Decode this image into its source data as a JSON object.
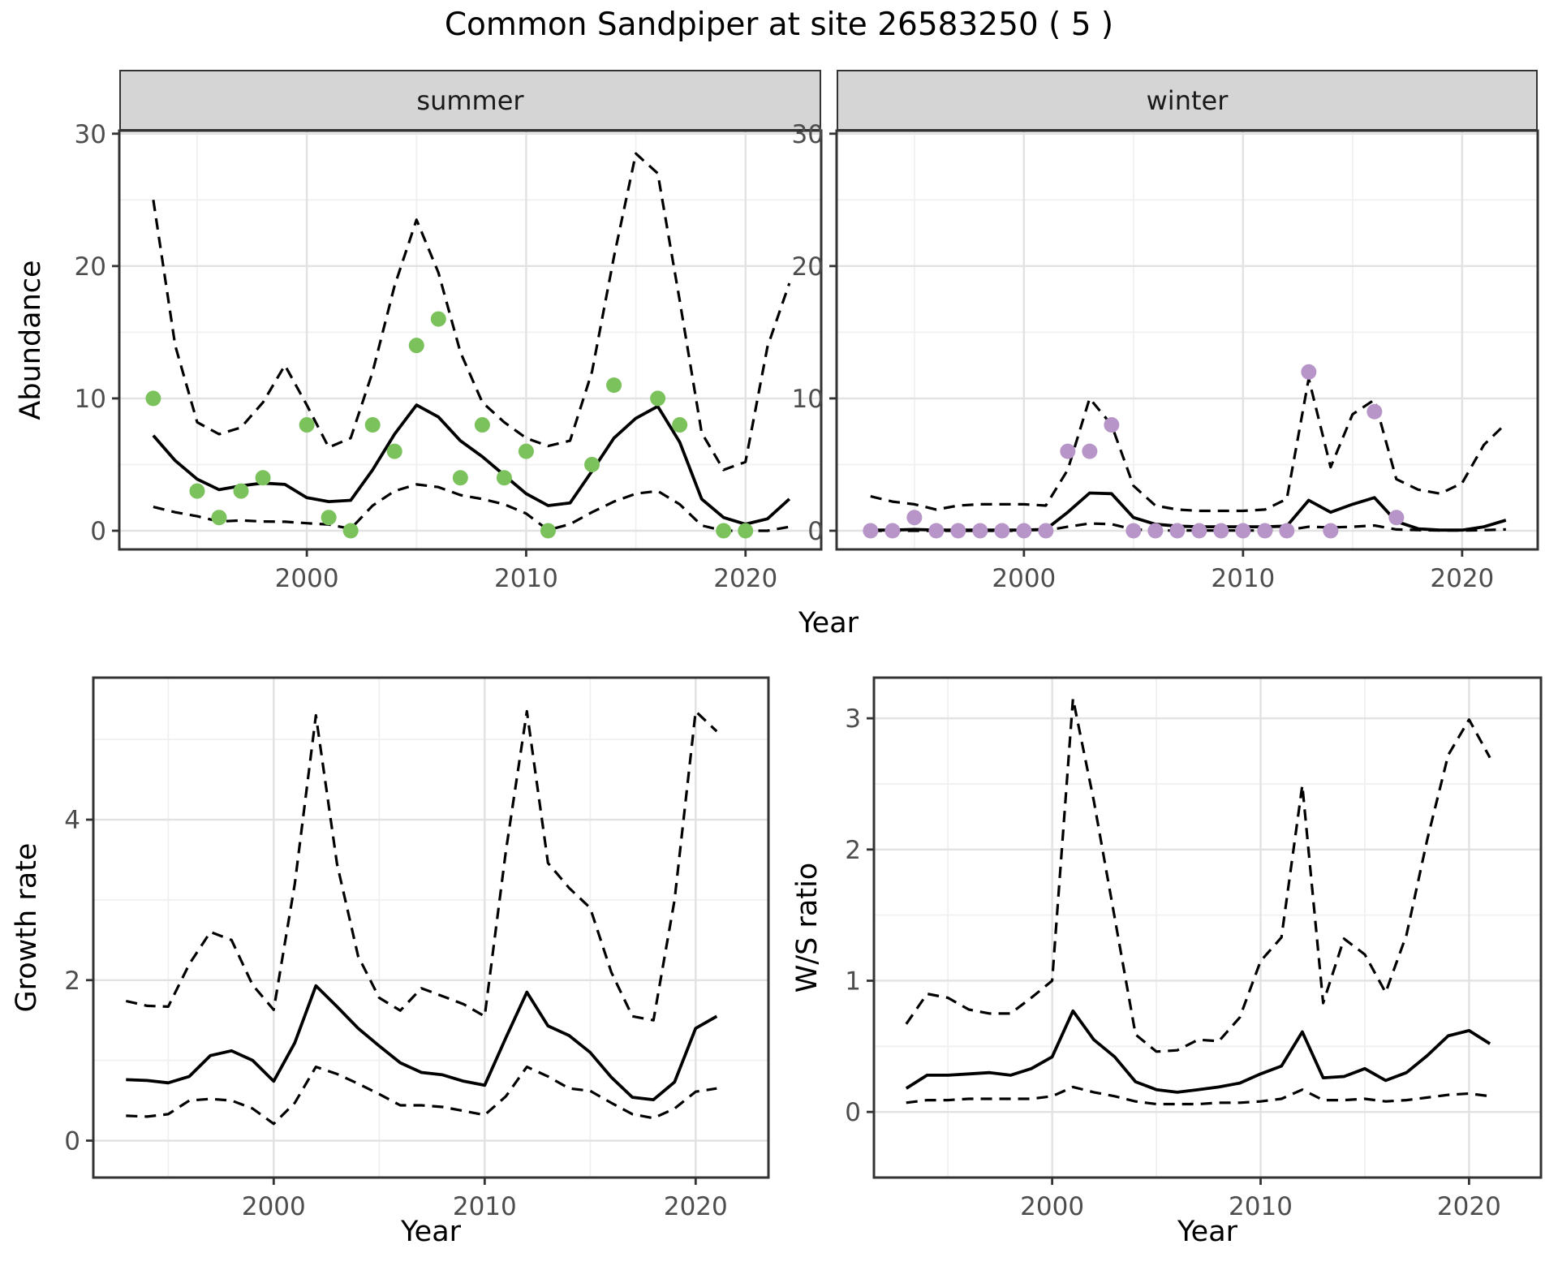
{
  "title": "Common Sandpiper at site 26583250 ( 5 )",
  "axes": {
    "abundance_label": "Abundance",
    "growth_label": "Growth rate",
    "ws_label": "W/S ratio",
    "year_label": "Year"
  },
  "facets": [
    {
      "label": "summer"
    },
    {
      "label": "winter"
    }
  ],
  "colors": {
    "summer_points": "#7bc25c",
    "winter_points": "#b795c8",
    "line": "#000000",
    "grid_major": "#e2e2e2",
    "grid_minor": "#f0f0f0",
    "panel_border": "#333333",
    "tick_text": "#4d4d4d"
  },
  "chart_data": [
    {
      "name": "abundance-summer",
      "type": "line",
      "facet_label": "summer",
      "ylabel": "Abundance",
      "xlabel": "Year",
      "xlim": [
        1991.45,
        2023.45
      ],
      "ylim": [
        -1.41,
        30.23
      ],
      "x_major_ticks": [
        2000,
        2010,
        2020
      ],
      "x_minor_ticks": [
        1995,
        2005,
        2015
      ],
      "y_major_ticks": [
        0,
        10,
        20,
        30
      ],
      "y_minor_ticks": [
        5,
        15,
        25
      ],
      "years": [
        1993,
        1994,
        1995,
        1996,
        1997,
        1998,
        1999,
        2000,
        2001,
        2002,
        2003,
        2004,
        2005,
        2006,
        2007,
        2008,
        2009,
        2010,
        2011,
        2012,
        2013,
        2014,
        2015,
        2016,
        2017,
        2018,
        2019,
        2020,
        2021,
        2022
      ],
      "series": [
        {
          "name": "median",
          "style": "solid",
          "values": [
            7.2,
            5.3,
            3.9,
            3.1,
            3.4,
            3.6,
            3.5,
            2.5,
            2.2,
            2.3,
            4.6,
            7.3,
            9.5,
            8.6,
            6.8,
            5.6,
            4.2,
            2.8,
            1.9,
            2.1,
            4.5,
            7.0,
            8.5,
            9.4,
            6.7,
            2.4,
            1.0,
            0.5,
            0.9,
            2.4
          ]
        },
        {
          "name": "lower_95",
          "style": "dashed",
          "values": [
            1.8,
            1.4,
            1.1,
            0.7,
            0.78,
            0.7,
            0.68,
            0.57,
            0.47,
            0.15,
            1.9,
            3.0,
            3.5,
            3.3,
            2.7,
            2.4,
            2.0,
            1.3,
            0.05,
            0.5,
            1.4,
            2.2,
            2.8,
            3.0,
            2.0,
            0.4,
            0.0,
            0.0,
            0.0,
            0.3
          ]
        },
        {
          "name": "upper_95",
          "style": "dashed",
          "values": [
            25.0,
            14.0,
            8.2,
            7.3,
            7.8,
            9.7,
            12.5,
            9.5,
            6.3,
            7.0,
            12.0,
            18.5,
            23.5,
            19.5,
            13.5,
            9.7,
            8.2,
            7.0,
            6.4,
            6.8,
            12.0,
            20.7,
            28.5,
            27.0,
            17.4,
            7.4,
            4.6,
            5.2,
            13.9,
            18.7
          ]
        }
      ],
      "points": {
        "name": "observed-counts-summer",
        "color_key": "summer_points",
        "data": [
          [
            1993,
            10
          ],
          [
            1995,
            3
          ],
          [
            1996,
            1
          ],
          [
            1997,
            3
          ],
          [
            1998,
            4
          ],
          [
            2000,
            8
          ],
          [
            2001,
            1
          ],
          [
            2002,
            0
          ],
          [
            2003,
            8
          ],
          [
            2004,
            6
          ],
          [
            2005,
            14
          ],
          [
            2006,
            16
          ],
          [
            2007,
            4
          ],
          [
            2008,
            8
          ],
          [
            2009,
            4
          ],
          [
            2010,
            6
          ],
          [
            2011,
            0
          ],
          [
            2013,
            5
          ],
          [
            2014,
            11
          ],
          [
            2016,
            10
          ],
          [
            2017,
            8
          ],
          [
            2019,
            0
          ],
          [
            2020,
            0
          ]
        ]
      }
    },
    {
      "name": "abundance-winter",
      "type": "line",
      "facet_label": "winter",
      "ylabel": "Abundance",
      "xlabel": "Year",
      "xlim": [
        1991.45,
        2023.45
      ],
      "ylim": [
        -1.41,
        30.23
      ],
      "x_major_ticks": [
        2000,
        2010,
        2020
      ],
      "x_minor_ticks": [
        1995,
        2005,
        2015
      ],
      "y_major_ticks": [
        0,
        10,
        20,
        30
      ],
      "y_minor_ticks": [
        5,
        15,
        25
      ],
      "years": [
        1993,
        1994,
        1995,
        1996,
        1997,
        1998,
        1999,
        2000,
        2001,
        2002,
        2003,
        2004,
        2005,
        2006,
        2007,
        2008,
        2009,
        2010,
        2011,
        2012,
        2013,
        2014,
        2015,
        2016,
        2017,
        2018,
        2019,
        2020,
        2021,
        2022
      ],
      "series": [
        {
          "name": "median",
          "style": "solid",
          "values": [
            0.05,
            0.05,
            0.1,
            0.05,
            0.05,
            0.05,
            0.05,
            0.05,
            0.1,
            1.4,
            2.85,
            2.8,
            1.0,
            0.5,
            0.35,
            0.3,
            0.3,
            0.3,
            0.3,
            0.35,
            2.3,
            1.4,
            2.0,
            2.5,
            0.7,
            0.15,
            0.05,
            0.05,
            0.3,
            0.8
          ]
        },
        {
          "name": "lower_95",
          "style": "dashed",
          "values": [
            0.0,
            0.0,
            0.0,
            0.0,
            0.0,
            0.0,
            0.0,
            0.0,
            0.02,
            0.3,
            0.55,
            0.5,
            0.1,
            0.02,
            0.02,
            0.02,
            0.02,
            0.02,
            0.02,
            0.05,
            0.3,
            0.25,
            0.3,
            0.4,
            0.1,
            0.05,
            0.02,
            0.02,
            0.05,
            0.1
          ]
        },
        {
          "name": "upper_95",
          "style": "dashed",
          "values": [
            2.6,
            2.2,
            2.0,
            1.6,
            1.9,
            2.0,
            2.0,
            2.0,
            1.9,
            4.6,
            10.0,
            8.0,
            3.4,
            1.9,
            1.6,
            1.5,
            1.5,
            1.5,
            1.6,
            2.4,
            11.5,
            4.8,
            8.8,
            9.9,
            3.9,
            3.1,
            2.8,
            3.6,
            6.5,
            8.1
          ]
        }
      ],
      "points": {
        "name": "observed-counts-winter",
        "color_key": "winter_points",
        "data": [
          [
            1993,
            0
          ],
          [
            1994,
            0
          ],
          [
            1995,
            1
          ],
          [
            1996,
            0
          ],
          [
            1997,
            0
          ],
          [
            1998,
            0
          ],
          [
            1999,
            0
          ],
          [
            2000,
            0
          ],
          [
            2001,
            0
          ],
          [
            2002,
            6
          ],
          [
            2003,
            6
          ],
          [
            2004,
            8
          ],
          [
            2005,
            0
          ],
          [
            2006,
            0
          ],
          [
            2007,
            0
          ],
          [
            2008,
            0
          ],
          [
            2009,
            0
          ],
          [
            2010,
            0
          ],
          [
            2011,
            0
          ],
          [
            2012,
            0
          ],
          [
            2013,
            12
          ],
          [
            2014,
            0
          ],
          [
            2016,
            9
          ],
          [
            2017,
            1
          ]
        ]
      }
    },
    {
      "name": "growth-rate",
      "type": "line",
      "facet_label": "",
      "ylabel": "Growth rate",
      "xlabel": "Year",
      "xlim": [
        1991.45,
        2023.45
      ],
      "ylim": [
        -0.46,
        5.77
      ],
      "x_major_ticks": [
        2000,
        2010,
        2020
      ],
      "x_minor_ticks": [
        1995,
        2005,
        2015
      ],
      "y_major_ticks": [
        0,
        2,
        4
      ],
      "y_minor_ticks": [
        1,
        3,
        5
      ],
      "years": [
        1993,
        1994,
        1995,
        1996,
        1997,
        1998,
        1999,
        2000,
        2001,
        2002,
        2003,
        2004,
        2005,
        2006,
        2007,
        2008,
        2009,
        2010,
        2011,
        2012,
        2013,
        2014,
        2015,
        2016,
        2017,
        2018,
        2019,
        2020,
        2021
      ],
      "series": [
        {
          "name": "median",
          "style": "solid",
          "values": [
            0.76,
            0.75,
            0.72,
            0.8,
            1.06,
            1.12,
            1.0,
            0.74,
            1.22,
            1.93,
            1.67,
            1.4,
            1.18,
            0.97,
            0.85,
            0.82,
            0.74,
            0.69,
            1.28,
            1.85,
            1.43,
            1.31,
            1.1,
            0.79,
            0.54,
            0.51,
            0.73,
            1.4,
            1.55
          ]
        },
        {
          "name": "lower_95",
          "style": "dashed",
          "values": [
            0.31,
            0.3,
            0.33,
            0.5,
            0.52,
            0.5,
            0.4,
            0.21,
            0.47,
            0.92,
            0.83,
            0.71,
            0.58,
            0.44,
            0.44,
            0.42,
            0.37,
            0.32,
            0.55,
            0.92,
            0.8,
            0.65,
            0.62,
            0.47,
            0.33,
            0.28,
            0.4,
            0.61,
            0.65
          ]
        },
        {
          "name": "upper_95",
          "style": "dashed",
          "values": [
            1.74,
            1.68,
            1.67,
            2.2,
            2.6,
            2.5,
            1.94,
            1.63,
            3.2,
            5.3,
            3.45,
            2.3,
            1.78,
            1.62,
            1.9,
            1.8,
            1.7,
            1.55,
            3.6,
            5.35,
            3.46,
            3.15,
            2.9,
            2.1,
            1.55,
            1.5,
            3.0,
            5.35,
            5.1
          ]
        }
      ],
      "points": null
    },
    {
      "name": "ws-ratio",
      "type": "line",
      "facet_label": "",
      "ylabel": "W/S ratio",
      "xlabel": "Year",
      "xlim": [
        1991.45,
        2023.45
      ],
      "ylim": [
        -0.5,
        3.31
      ],
      "x_major_ticks": [
        2000,
        2010,
        2020
      ],
      "x_minor_ticks": [
        1995,
        2005,
        2015
      ],
      "y_major_ticks": [
        0,
        1,
        2,
        3
      ],
      "y_minor_ticks": [
        0.5,
        1.5,
        2.5
      ],
      "years": [
        1993,
        1994,
        1995,
        1996,
        1997,
        1998,
        1999,
        2000,
        2001,
        2002,
        2003,
        2004,
        2005,
        2006,
        2007,
        2008,
        2009,
        2010,
        2011,
        2012,
        2013,
        2014,
        2015,
        2016,
        2017,
        2018,
        2019,
        2020,
        2021
      ],
      "series": [
        {
          "name": "median",
          "style": "solid",
          "values": [
            0.18,
            0.28,
            0.28,
            0.29,
            0.3,
            0.28,
            0.33,
            0.42,
            0.77,
            0.55,
            0.42,
            0.23,
            0.17,
            0.15,
            0.17,
            0.19,
            0.22,
            0.29,
            0.35,
            0.61,
            0.26,
            0.27,
            0.33,
            0.24,
            0.3,
            0.43,
            0.58,
            0.62,
            0.52
          ]
        },
        {
          "name": "lower_95",
          "style": "dashed",
          "values": [
            0.07,
            0.09,
            0.09,
            0.1,
            0.1,
            0.1,
            0.1,
            0.12,
            0.19,
            0.15,
            0.12,
            0.08,
            0.06,
            0.06,
            0.06,
            0.07,
            0.07,
            0.08,
            0.1,
            0.17,
            0.09,
            0.09,
            0.1,
            0.08,
            0.09,
            0.11,
            0.13,
            0.14,
            0.12
          ]
        },
        {
          "name": "upper_95",
          "style": "dashed",
          "values": [
            0.67,
            0.9,
            0.87,
            0.78,
            0.75,
            0.75,
            0.87,
            1.0,
            3.15,
            2.37,
            1.48,
            0.59,
            0.46,
            0.47,
            0.55,
            0.54,
            0.72,
            1.15,
            1.33,
            2.49,
            0.83,
            1.32,
            1.2,
            0.91,
            1.35,
            2.08,
            2.72,
            2.99,
            2.7
          ]
        }
      ],
      "points": null
    }
  ]
}
